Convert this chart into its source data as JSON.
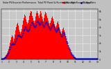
{
  "title": "Solar PV/Inverter Performance  Total PV Panel & Running Average Power Output",
  "bg_color": "#c0c0c0",
  "plot_bg_color": "#c8c8c8",
  "bar_color": "#ff0000",
  "avg_line_color": "#0000cc",
  "grid_color": "#ffffff",
  "text_color": "#000000",
  "title_color": "#000000",
  "n_bars": 140,
  "bar_heights": [
    0.01,
    0.01,
    0.02,
    0.03,
    0.04,
    0.06,
    0.08,
    0.1,
    0.13,
    0.17,
    0.22,
    0.28,
    0.34,
    0.4,
    0.46,
    0.5,
    0.48,
    0.42,
    0.38,
    0.43,
    0.52,
    0.6,
    0.67,
    0.73,
    0.76,
    0.7,
    0.62,
    0.57,
    0.53,
    0.58,
    0.64,
    0.72,
    0.8,
    0.87,
    0.93,
    0.9,
    0.84,
    0.77,
    0.73,
    0.76,
    0.82,
    0.9,
    0.96,
    1.0,
    0.99,
    0.91,
    0.86,
    0.81,
    0.76,
    0.81,
    0.89,
    0.97,
    1.0,
    0.96,
    0.91,
    0.86,
    0.93,
    1.0,
    0.96,
    0.89,
    0.83,
    0.79,
    0.86,
    0.93,
    0.99,
    0.96,
    0.91,
    0.86,
    0.81,
    0.76,
    0.71,
    0.76,
    0.81,
    0.86,
    0.89,
    0.85,
    0.79,
    0.73,
    0.69,
    0.66,
    0.71,
    0.76,
    0.79,
    0.73,
    0.66,
    0.61,
    0.56,
    0.53,
    0.59,
    0.63,
    0.66,
    0.61,
    0.56,
    0.49,
    0.43,
    0.39,
    0.33,
    0.29,
    0.25,
    0.21,
    0.17,
    0.14,
    0.11,
    0.09,
    0.07,
    0.06,
    0.05,
    0.04,
    0.03,
    0.02,
    0.02,
    0.01,
    0.01,
    0.01,
    0.01,
    0.01,
    0.01,
    0.01,
    0.01,
    0.01,
    0.01,
    0.01,
    0.01,
    0.01,
    0.01,
    0.01,
    0.01,
    0.01,
    0.01,
    0.01,
    0.01,
    0.01,
    0.01,
    0.01,
    0.01,
    0.01,
    0.01,
    0.01,
    0.01,
    0.01
  ],
  "avg_line": [
    0.01,
    0.01,
    0.01,
    0.02,
    0.03,
    0.04,
    0.05,
    0.07,
    0.09,
    0.11,
    0.14,
    0.18,
    0.22,
    0.26,
    0.3,
    0.32,
    0.33,
    0.32,
    0.31,
    0.33,
    0.37,
    0.41,
    0.45,
    0.49,
    0.51,
    0.51,
    0.49,
    0.47,
    0.46,
    0.48,
    0.51,
    0.55,
    0.6,
    0.64,
    0.67,
    0.67,
    0.64,
    0.61,
    0.59,
    0.6,
    0.63,
    0.67,
    0.72,
    0.76,
    0.77,
    0.75,
    0.72,
    0.69,
    0.67,
    0.69,
    0.72,
    0.77,
    0.8,
    0.78,
    0.75,
    0.72,
    0.75,
    0.79,
    0.77,
    0.73,
    0.7,
    0.67,
    0.71,
    0.75,
    0.78,
    0.77,
    0.74,
    0.71,
    0.68,
    0.65,
    0.62,
    0.65,
    0.68,
    0.71,
    0.73,
    0.71,
    0.67,
    0.63,
    0.6,
    0.57,
    0.61,
    0.64,
    0.66,
    0.62,
    0.57,
    0.53,
    0.49,
    0.47,
    0.51,
    0.54,
    0.56,
    0.52,
    0.48,
    0.43,
    0.38,
    0.34,
    0.29,
    0.25,
    0.21,
    0.18,
    0.15,
    0.12,
    0.09,
    0.08,
    0.06,
    0.05,
    0.04,
    0.03,
    0.02,
    0.02,
    0.01,
    0.01,
    0.01,
    0.01,
    0.01,
    0.01,
    0.01,
    0.01,
    0.01,
    0.01,
    0.01,
    0.01,
    0.01,
    0.01,
    0.01,
    0.01,
    0.01,
    0.01,
    0.01,
    0.01,
    0.01,
    0.01,
    0.01,
    0.01,
    0.01,
    0.01,
    0.01,
    0.01,
    0.01,
    0.01
  ],
  "ylim": [
    0,
    1.05
  ],
  "right_labels": [
    "6k",
    "5k",
    "4k",
    "3k",
    "2k",
    "1k",
    "0"
  ],
  "legend_pv": "Total....Watts",
  "legend_avg": "Run.Avg.Watts",
  "legend_color_pv": "#ff0000",
  "legend_color_avg": "#0000cc",
  "xlabel_color": "#000000",
  "n_vgrid": 14,
  "n_hgrid": 7
}
